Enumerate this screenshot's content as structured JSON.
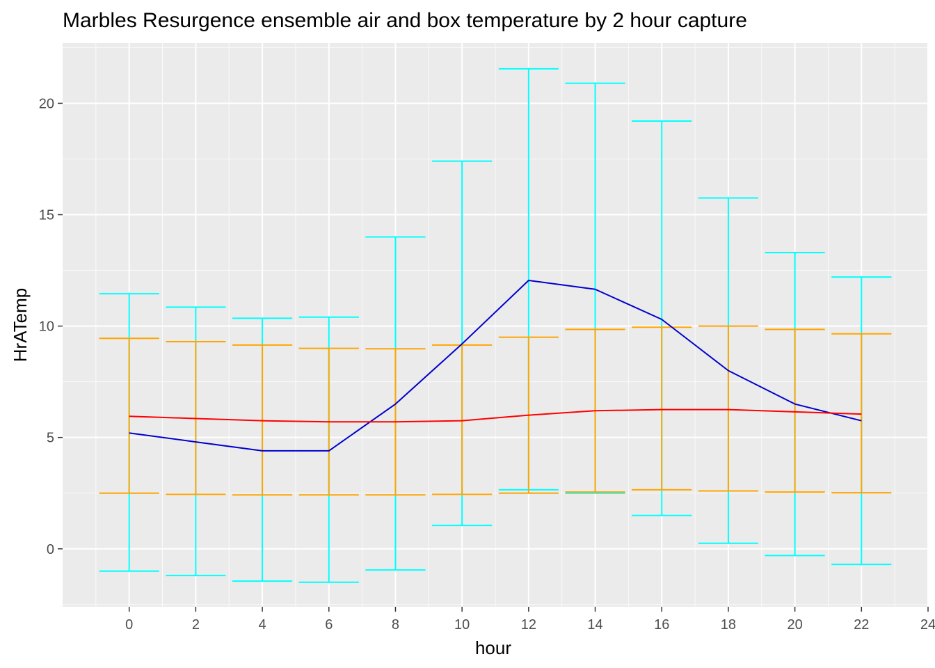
{
  "chart_data": {
    "type": "line",
    "title": "Marbles Resurgence ensemble air and box temperature by 2 hour capture",
    "xlabel": "hour",
    "ylabel": "HrATemp",
    "xlim": [
      -2,
      24
    ],
    "ylim": [
      -2.6,
      22.7
    ],
    "x_ticks": [
      0,
      2,
      4,
      6,
      8,
      10,
      12,
      14,
      16,
      18,
      20,
      22,
      24
    ],
    "y_ticks": [
      0,
      5,
      10,
      15,
      20
    ],
    "grid": true,
    "background": "#ebebeb",
    "x": [
      0,
      2,
      4,
      6,
      8,
      10,
      12,
      14,
      16,
      18,
      20,
      22
    ],
    "series": [
      {
        "color": "#0000cd",
        "kind": "line",
        "values": [
          5.2,
          4.8,
          4.4,
          4.4,
          6.5,
          9.2,
          12.05,
          11.65,
          10.3,
          8.0,
          6.5,
          5.75
        ]
      },
      {
        "color": "#ff0000",
        "kind": "line",
        "values": [
          5.95,
          5.85,
          5.75,
          5.7,
          5.7,
          5.75,
          6.0,
          6.2,
          6.25,
          6.25,
          6.15,
          6.05
        ]
      },
      {
        "color": "#00ffff",
        "kind": "errorbar",
        "lower": [
          -1.0,
          -1.2,
          -1.45,
          -1.5,
          -0.95,
          1.05,
          2.65,
          2.5,
          1.5,
          0.25,
          -0.3,
          -0.7
        ],
        "upper": [
          11.45,
          10.85,
          10.35,
          10.4,
          14.0,
          17.4,
          21.55,
          20.9,
          19.2,
          15.75,
          13.3,
          12.2
        ]
      },
      {
        "color": "#ffa500",
        "kind": "errorbar",
        "lower": [
          2.5,
          2.45,
          2.42,
          2.42,
          2.42,
          2.45,
          2.5,
          2.55,
          2.65,
          2.6,
          2.55,
          2.52
        ],
        "upper": [
          9.45,
          9.3,
          9.15,
          9.0,
          8.98,
          9.15,
          9.5,
          9.85,
          9.95,
          10.0,
          9.85,
          9.65
        ]
      }
    ]
  }
}
